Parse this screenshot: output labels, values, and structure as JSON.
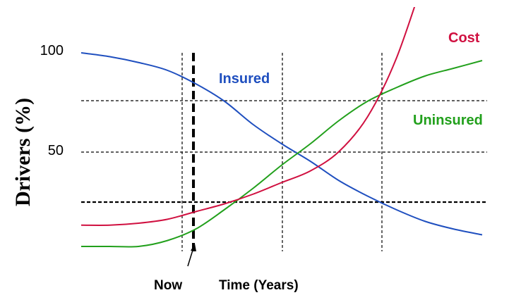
{
  "chart_data": {
    "type": "line",
    "ylabel": "Drivers (%)",
    "xlabel": "Time (Years)",
    "y_ticks": [
      {
        "value": 100,
        "label": "100"
      },
      {
        "value": 50,
        "label": "50"
      }
    ],
    "grid": true,
    "annotations": {
      "now_label": "Now"
    },
    "series": [
      {
        "name": "Insured",
        "color": "#1f4fbf",
        "points": [
          [
            0,
            100
          ],
          [
            1,
            98
          ],
          [
            2,
            95
          ],
          [
            3,
            91
          ],
          [
            4,
            84
          ],
          [
            5,
            75
          ],
          [
            6,
            63
          ],
          [
            7,
            53
          ],
          [
            8,
            44
          ],
          [
            9,
            34
          ],
          [
            10,
            26
          ],
          [
            11,
            19
          ],
          [
            12,
            13
          ],
          [
            13,
            9
          ],
          [
            14,
            6
          ]
        ]
      },
      {
        "name": "Uninsured",
        "color": "#22a01c",
        "points": [
          [
            0,
            0
          ],
          [
            1,
            0
          ],
          [
            2,
            0
          ],
          [
            3,
            3
          ],
          [
            4,
            9
          ],
          [
            5,
            19
          ],
          [
            6,
            30
          ],
          [
            7,
            42
          ],
          [
            8,
            53
          ],
          [
            9,
            65
          ],
          [
            10,
            75
          ],
          [
            11,
            82
          ],
          [
            12,
            88
          ],
          [
            13,
            92
          ],
          [
            14,
            96
          ]
        ]
      },
      {
        "name": "Cost",
        "color": "#d01040",
        "points": [
          [
            0,
            11
          ],
          [
            1,
            11
          ],
          [
            2,
            12
          ],
          [
            3,
            14
          ],
          [
            4,
            18
          ],
          [
            5,
            22
          ],
          [
            6,
            27
          ],
          [
            7,
            33
          ],
          [
            8,
            39
          ],
          [
            9,
            49
          ],
          [
            10,
            67
          ],
          [
            11,
            97
          ],
          [
            12,
            140
          ]
        ]
      }
    ]
  }
}
